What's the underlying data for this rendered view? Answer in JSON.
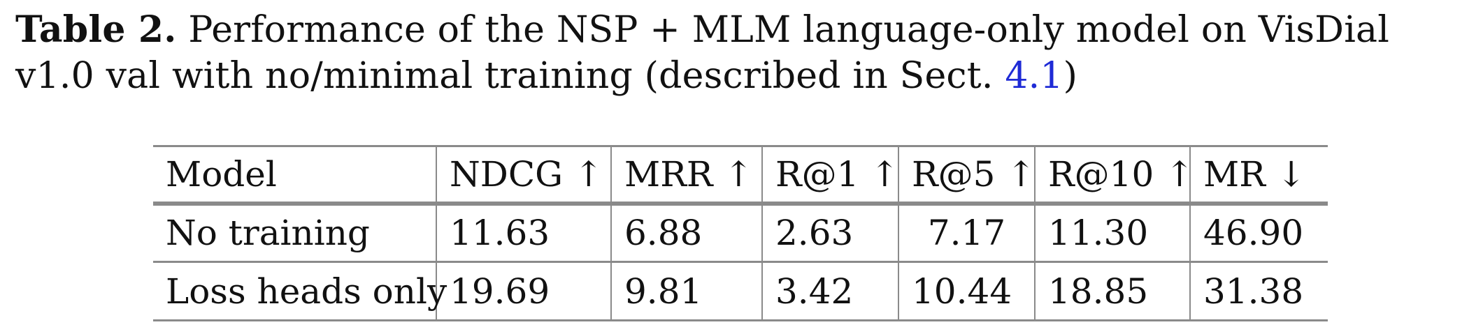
{
  "caption": {
    "label": "Table 2.",
    "text_before_ref": "Performance of the NSP + MLM language-only model on VisDial v1.0 val with no/minimal training (described in Sect.",
    "section_ref": "4.1",
    "text_after_ref": ")"
  },
  "table": {
    "headers": [
      "Model",
      "NDCG ↑",
      "MRR ↑",
      "R@1 ↑",
      "R@5 ↑",
      "R@10 ↑",
      "MR ↓"
    ],
    "rows": [
      [
        "No training",
        "11.63",
        "6.88",
        "2.63",
        "7.17",
        "11.30",
        "46.90"
      ],
      [
        "Loss heads only",
        "19.69",
        "9.81",
        "3.42",
        "10.44",
        "18.85",
        "31.38"
      ]
    ]
  }
}
